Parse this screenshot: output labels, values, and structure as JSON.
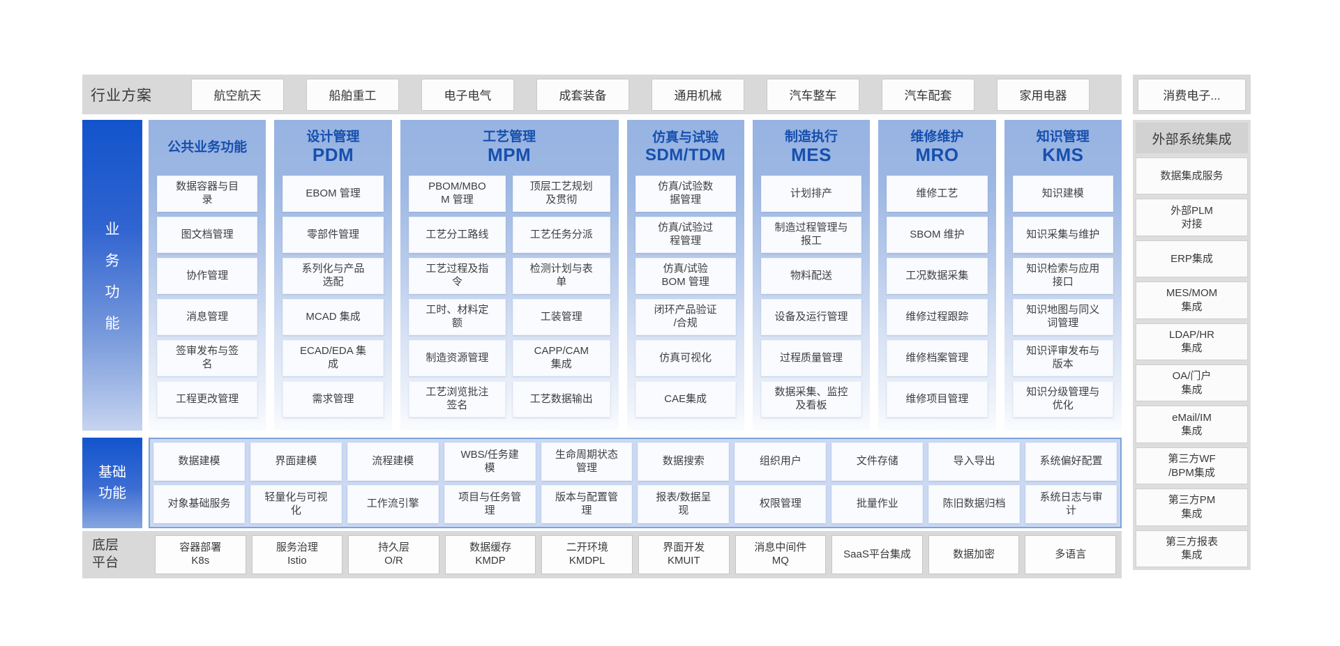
{
  "industry_bar": {
    "label": "行业方案",
    "items": [
      "航空航天",
      "船舶重工",
      "电子电气",
      "成套装备",
      "通用机械",
      "汽车整车",
      "汽车配套",
      "家用电器"
    ],
    "more_item": "消费电子..."
  },
  "business": {
    "side_label": "业务功能",
    "columns": [
      {
        "title": "公共业务功能",
        "acronym": "",
        "items": [
          "数据容器与目\n录",
          "图文档管理",
          "协作管理",
          "消息管理",
          "签审发布与签\n名",
          "工程更改管理"
        ]
      },
      {
        "title": "设计管理",
        "acronym": "PDM",
        "items": [
          "EBOM 管理",
          "零部件管理",
          "系列化与产品\n选配",
          "MCAD 集成",
          "ECAD/EDA 集\n成",
          "需求管理"
        ]
      },
      {
        "title": "工艺管理",
        "acronym": "MPM",
        "groups": [
          [
            "PBOM/MBO\nM 管理",
            "工艺分工路线",
            "工艺过程及指\n令",
            "工时、材料定\n额",
            "制造资源管理",
            "工艺浏览批注\n签名"
          ],
          [
            "顶层工艺规划\n及贯彻",
            "工艺任务分派",
            "检测计划与表\n单",
            "工装管理",
            "CAPP/CAM\n集成",
            "工艺数据输出"
          ]
        ]
      },
      {
        "title": "仿真与试验",
        "acronym": "SDM/TDM",
        "items": [
          "仿真/试验数\n据管理",
          "仿真/试验过\n程管理",
          "仿真/试验\nBOM 管理",
          "闭环产品验证\n/合规",
          "仿真可视化",
          "CAE集成"
        ]
      },
      {
        "title": "制造执行",
        "acronym": "MES",
        "items": [
          "计划排产",
          "制造过程管理与\n报工",
          "物料配送",
          "设备及运行管理",
          "过程质量管理",
          "数据采集、监控\n及看板"
        ]
      },
      {
        "title": "维修维护",
        "acronym": "MRO",
        "items": [
          "维修工艺",
          "SBOM 维护",
          "工况数据采集",
          "维修过程跟踪",
          "维修档案管理",
          "维修项目管理"
        ]
      },
      {
        "title": "知识管理",
        "acronym": "KMS",
        "items": [
          "知识建模",
          "知识采集与维护",
          "知识检索与应用\n接口",
          "知识地图与同义\n词管理",
          "知识评审发布与\n版本",
          "知识分级管理与\n优化"
        ]
      }
    ]
  },
  "basic": {
    "side_label": "基础\n功能",
    "row1": [
      "数据建模",
      "界面建模",
      "流程建模",
      "WBS/任务建\n模",
      "生命周期状态\n管理",
      "数据搜索",
      "组织用户",
      "文件存储",
      "导入导出",
      "系统偏好配置"
    ],
    "row2": [
      "对象基础服务",
      "轻量化与可视\n化",
      "工作流引擎",
      "项目与任务管\n理",
      "版本与配置管\n理",
      "报表/数据呈\n现",
      "权限管理",
      "批量作业",
      "陈旧数据归档",
      "系统日志与审\n计"
    ]
  },
  "platform": {
    "side_label": "底层\n平台",
    "items": [
      "容器部署\nK8s",
      "服务治理\nIstio",
      "持久层\nO/R",
      "数据缓存\nKMDP",
      "二开环境\nKMDPL",
      "界面开发\nKMUIT",
      "消息中间件\nMQ",
      "SaaS平台集成",
      "数据加密",
      "多语言"
    ]
  },
  "external": {
    "title": "外部系统集成",
    "items": [
      "数据集成服务",
      "外部PLM\n对接",
      "ERP集成",
      "MES/MOM\n集成",
      "LDAP/HR\n集成",
      "OA/门户\n集成",
      "eMail/IM\n集成",
      "第三方WF\n/BPM集成",
      "第三方PM\n集成",
      "第三方报表\n集成"
    ]
  },
  "colors": {
    "accent_blue": "#1254cc",
    "header_text_blue": "#164fae",
    "column_top_blue": "#97b3e1",
    "basic_panel_bg": "#cbd9f3",
    "basic_panel_border": "#7da3db",
    "gray_bar": "#d9d9d9"
  }
}
